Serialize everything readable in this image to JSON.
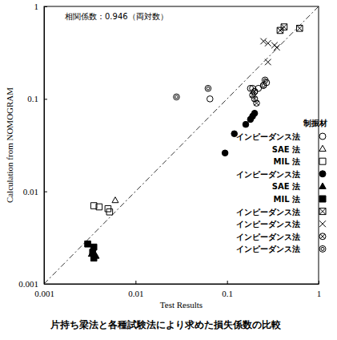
{
  "chart_data": {
    "type": "scatter",
    "title": "片持ち梁法と各種試験法により求めた損失係数の比較",
    "annotation": "相関係数：0.946（両対数）",
    "legend_title": "制振材",
    "x_label": "Test Results",
    "y_label": "Calculation from NOMOGRAM",
    "log": true,
    "grid": false,
    "legend": "right",
    "xlim": [
      0.001,
      1
    ],
    "ylim": [
      0.001,
      1
    ],
    "xticks": [
      0.001,
      0.01,
      0.1,
      1
    ],
    "yticks": [
      0.001,
      0.01,
      0.1,
      1
    ],
    "series": [
      {
        "name": "インピーダンス法",
        "marker": "circle-open",
        "color": "#000000",
        "x": [
          0.065,
          0.18,
          0.19,
          0.2,
          0.22,
          0.25,
          0.27
        ],
        "values": [
          0.1,
          0.13,
          0.13,
          0.12,
          0.13,
          0.14,
          0.15
        ]
      },
      {
        "name": "SAE 法",
        "marker": "triangle-open",
        "color": "#000000",
        "x": [
          0.006
        ],
        "values": [
          0.008
        ]
      },
      {
        "name": "MIL 法",
        "marker": "square-open",
        "color": "#000000",
        "x": [
          0.0035,
          0.004,
          0.005,
          0.0052
        ],
        "values": [
          0.007,
          0.0068,
          0.0065,
          0.006
        ]
      },
      {
        "name": "インピーダンス法",
        "marker": "circle",
        "color": "#000000",
        "x": [
          0.095,
          0.12,
          0.16,
          0.18,
          0.19,
          0.2
        ],
        "values": [
          0.026,
          0.042,
          0.053,
          0.06,
          0.065,
          0.07
        ]
      },
      {
        "name": "SAE 法",
        "marker": "triangle",
        "color": "#000000",
        "x": [
          0.0033,
          0.0037
        ],
        "values": [
          0.0021,
          0.002
        ]
      },
      {
        "name": "MIL 法",
        "marker": "square",
        "color": "#000000",
        "x": [
          0.003,
          0.0035,
          0.0034,
          0.0035
        ],
        "values": [
          0.0027,
          0.0025,
          0.0022,
          0.0019
        ]
      },
      {
        "name": "インピーダンス法",
        "marker": "square-x",
        "color": "#000000",
        "x": [
          0.38,
          0.42,
          0.62
        ],
        "values": [
          0.55,
          0.6,
          0.58
        ]
      },
      {
        "name": "インピーダンス法",
        "marker": "x",
        "color": "#000000",
        "x": [
          0.25,
          0.28,
          0.33,
          0.35,
          0.28
        ],
        "values": [
          0.42,
          0.4,
          0.38,
          0.36,
          0.25
        ]
      },
      {
        "name": "インピーダンス法",
        "marker": "circle-x",
        "color": "#000000",
        "x": [
          0.2,
          0.21,
          0.19,
          0.2
        ],
        "values": [
          0.1,
          0.09,
          0.11,
          0.12
        ]
      },
      {
        "name": "インピーダンス法",
        "marker": "circle-double",
        "color": "#000000",
        "x": [
          0.028,
          0.062,
          0.26,
          0.25
        ],
        "values": [
          0.105,
          0.13,
          0.16,
          0.14
        ]
      }
    ]
  }
}
